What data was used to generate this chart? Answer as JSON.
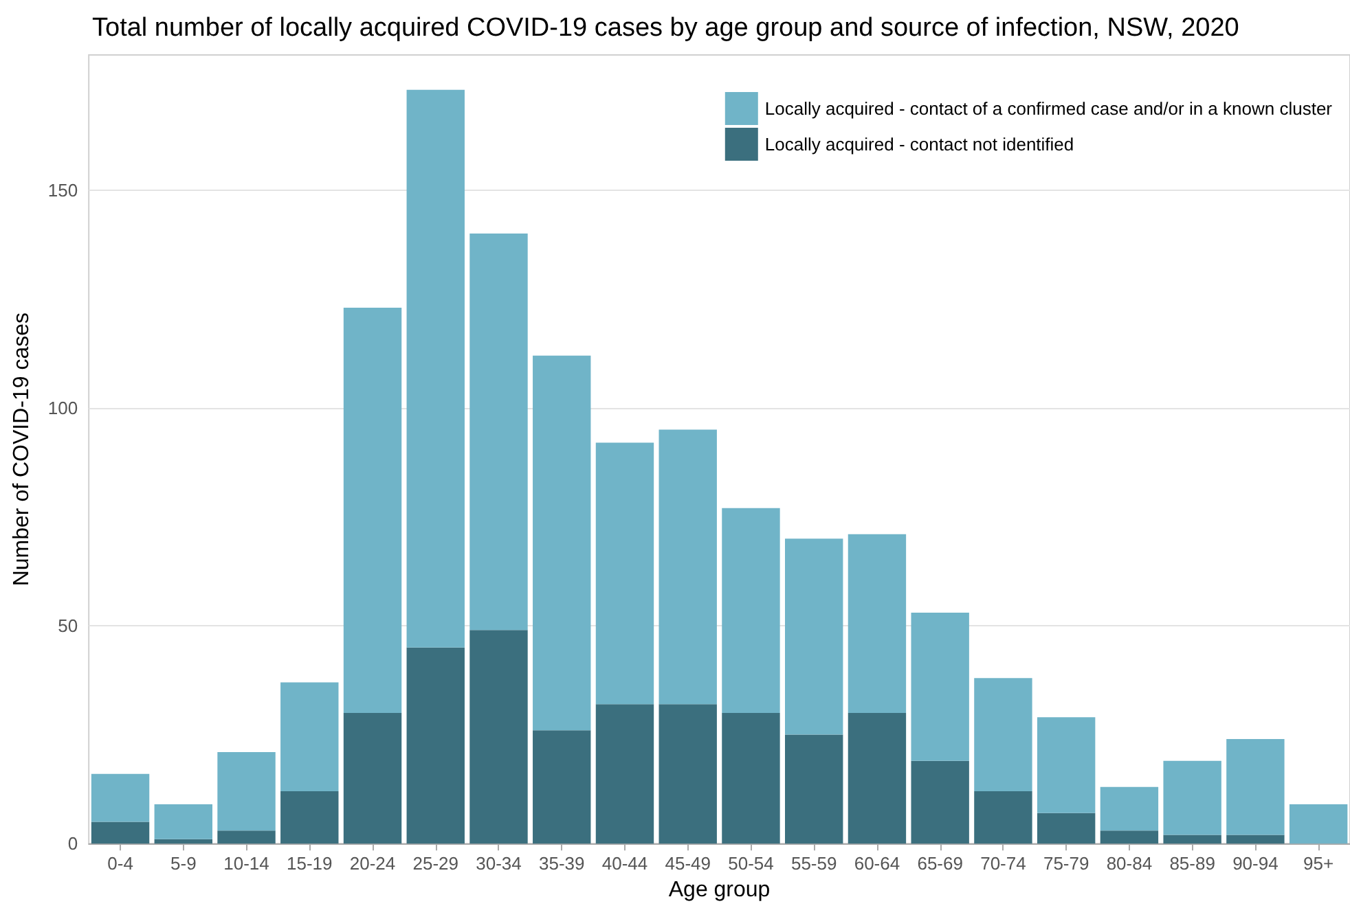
{
  "chart_data": {
    "type": "bar",
    "title": "Total number of locally acquired COVID-19 cases by age group and source of infection, NSW, 2020",
    "xlabel": "Age group",
    "ylabel": "Number of COVID-19 cases",
    "categories": [
      "0-4",
      "5-9",
      "10-14",
      "15-19",
      "20-24",
      "25-29",
      "30-34",
      "35-39",
      "40-44",
      "45-49",
      "50-54",
      "55-59",
      "60-64",
      "65-69",
      "70-74",
      "75-79",
      "80-84",
      "85-89",
      "90-94",
      "95+"
    ],
    "stacked": true,
    "series": [
      {
        "name": "Locally acquired - contact not identified",
        "color": "#3b6f7e",
        "values": [
          5,
          1,
          3,
          12,
          30,
          45,
          49,
          26,
          32,
          32,
          30,
          25,
          30,
          19,
          12,
          7,
          3,
          2,
          2,
          0
        ]
      },
      {
        "name": "Locally acquired - contact of a confirmed case and/or in a known cluster",
        "color": "#70b4c8",
        "values": [
          11,
          8,
          18,
          25,
          93,
          128,
          91,
          86,
          60,
          63,
          47,
          45,
          41,
          34,
          26,
          22,
          10,
          17,
          22,
          9
        ]
      }
    ],
    "ylim": [
      0,
      181
    ],
    "yticks": [
      0,
      50,
      100,
      150
    ],
    "grid": "y",
    "legend": "top right"
  }
}
